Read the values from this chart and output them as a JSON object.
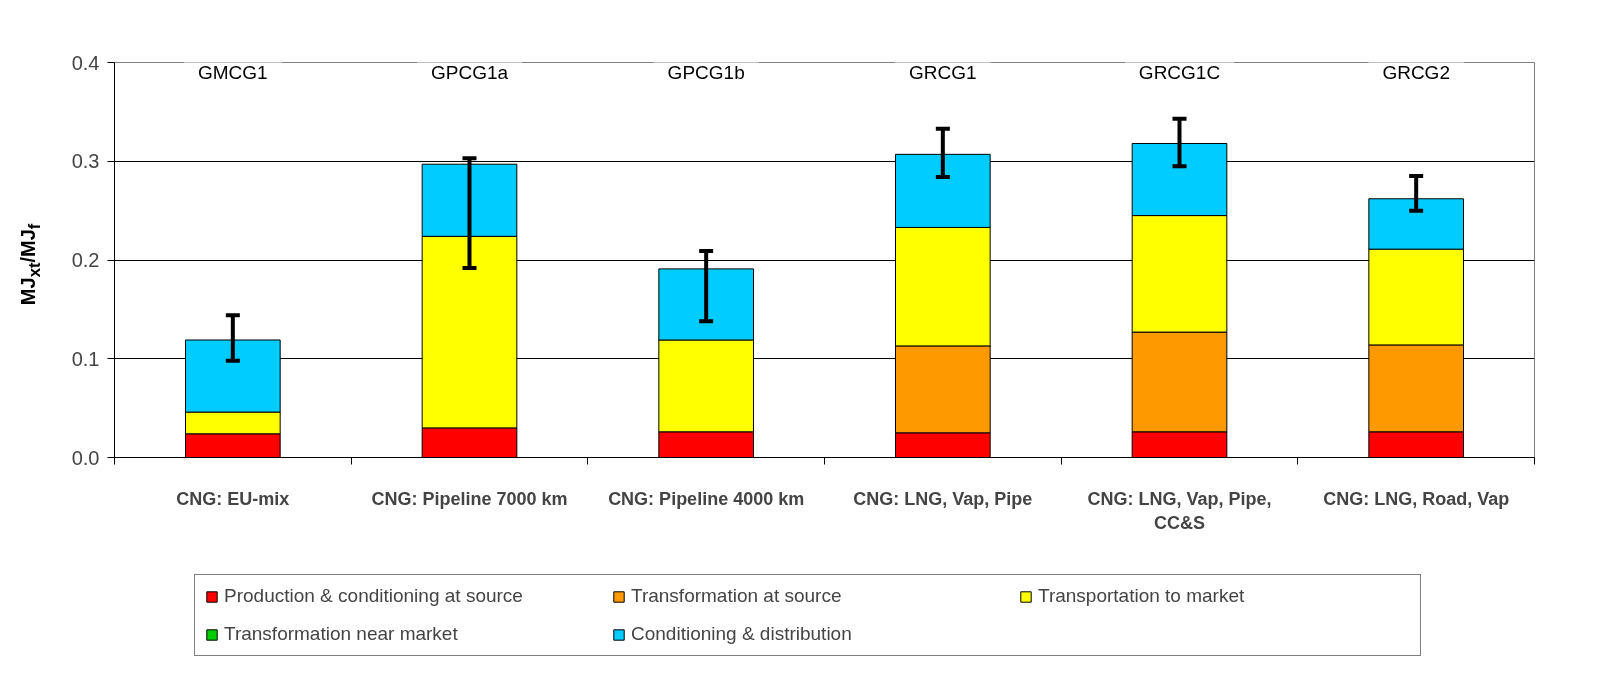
{
  "chart_data": {
    "type": "bar",
    "stacked": true,
    "categories": [
      "CNG: EU-mix",
      "CNG: Pipeline 7000 km",
      "CNG: Pipeline 4000 km",
      "CNG: LNG, Vap, Pipe",
      "CNG: LNG, Vap, Pipe, CC&S",
      "CNG: LNG, Road, Vap"
    ],
    "ylabel": "MJ$_{xt}$/MJ$_{f}$",
    "ylim": [
      0,
      0.4
    ],
    "yticks": [
      {
        "value": 0,
        "label": "0.0"
      },
      0.1,
      0.2,
      0.3,
      0.4
    ],
    "grid": "y",
    "legend": "bottom",
    "series": [
      {
        "name": "Production & conditioning at source",
        "color": "#ff0000",
        "values": [
          0.024,
          0.03,
          0.026,
          0.025,
          0.026,
          0.026
        ]
      },
      {
        "name": "Transformation at source",
        "color": "#ff9900",
        "values": [
          null,
          null,
          null,
          0.088,
          0.101,
          0.088
        ]
      },
      {
        "name": "Transportation to market",
        "color": "#ffff00",
        "values": [
          0.022,
          0.194,
          0.093,
          0.12,
          0.118,
          0.097
        ]
      },
      {
        "name": "Transformation near market",
        "color": "#00cc00",
        "values": [
          null,
          null,
          null,
          null,
          null,
          null
        ]
      },
      {
        "name": "Conditioning & distribution",
        "color": "#00ccff",
        "values": [
          0.073,
          0.073,
          0.072,
          0.074,
          0.073,
          0.051
        ],
        "errors": [
          [
            0.098,
            0.144
          ],
          [
            0.192,
            0.303
          ],
          [
            0.138,
            0.209
          ],
          [
            0.284,
            0.333
          ],
          [
            0.295,
            0.343
          ],
          [
            0.25,
            0.285
          ]
        ]
      }
    ],
    "annotations": [
      "GMCG1",
      "GPCG1a",
      "GPCG1b",
      "GRCG1",
      "GRCG1C",
      "GRCG2"
    ]
  }
}
